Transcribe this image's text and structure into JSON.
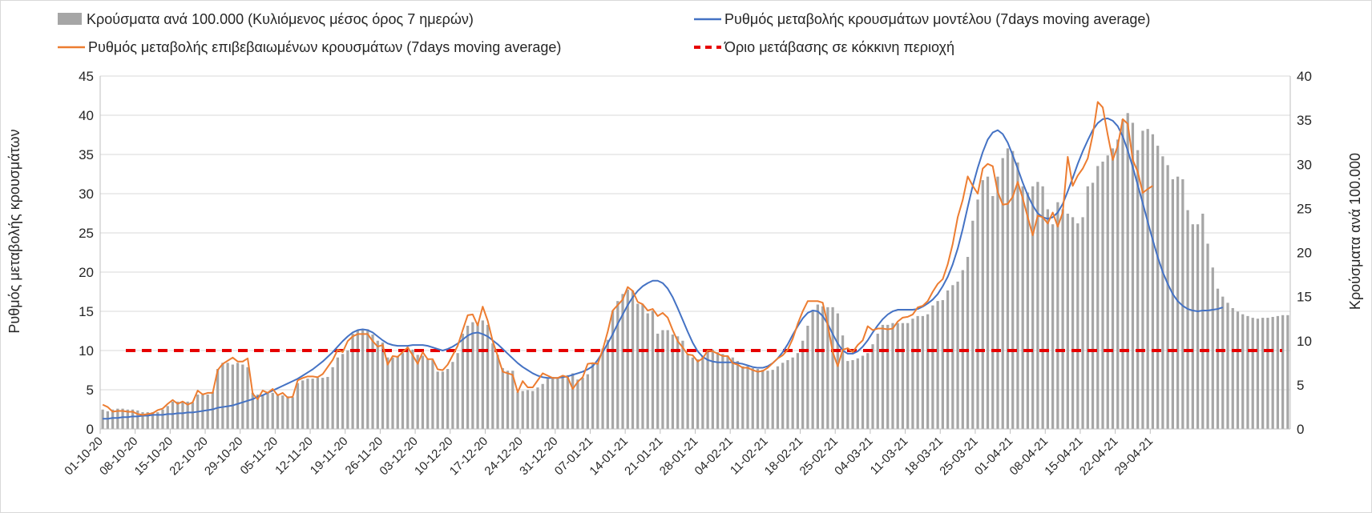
{
  "chart_data": {
    "type": "bar",
    "legend": {
      "bars": "Κρούσματα ανά 100.000 (Κυλιόμενος μέσος όρος 7 ημερών)",
      "model_rate": "Ρυθμός μεταβολής κρουσμάτων μοντέλου (7days moving average)",
      "confirmed_rate": "Ρυθμός μεταβολής επιβεβαιωμένων κρουσμάτων (7days moving average)",
      "threshold": "Όριο μετάβασης σε κόκκινη περιοχή"
    },
    "ylabel_left": "Ρυθμός μεταβολής κρουσμάτων",
    "ylabel_right": "Κρούσματα ανά 100.000",
    "ylim_left": [
      0,
      45
    ],
    "yticks_left": [
      0,
      5,
      10,
      15,
      20,
      25,
      30,
      35,
      40,
      45
    ],
    "ylim_right": [
      0,
      40
    ],
    "yticks_right": [
      0,
      5,
      10,
      15,
      20,
      25,
      30,
      35,
      40
    ],
    "x_start": "01-10-20",
    "x_tick_labels": [
      "01-10-20",
      "08-10-20",
      "15-10-20",
      "22-10-20",
      "29-10-20",
      "05-11-20",
      "12-11-20",
      "19-11-20",
      "26-11-20",
      "03-12-20",
      "10-12-20",
      "17-12-20",
      "24-12-20",
      "31-12-20",
      "07-01-21",
      "14-01-21",
      "21-01-21",
      "28-01-21",
      "04-02-21",
      "11-02-21",
      "18-02-21",
      "25-02-21",
      "04-03-21",
      "11-03-21",
      "18-03-21",
      "25-03-21",
      "01-04-21",
      "08-04-21",
      "15-04-21",
      "22-04-21",
      "29-04-21"
    ],
    "grid": "horizontal",
    "legend_position": "top",
    "colors": {
      "bars": "#a6a6a6",
      "model_rate": "#4472c4",
      "confirmed_rate": "#ed7d31",
      "threshold": "#e60000",
      "grid": "#d9d9d9"
    },
    "bars_per_100k": [
      2.2,
      2.0,
      2.2,
      2.3,
      2.3,
      2.2,
      2.2,
      2.1,
      1.9,
      1.9,
      1.9,
      1.9,
      2.2,
      2.6,
      3.1,
      3.1,
      3.1,
      3.1,
      3.0,
      3.9,
      3.9,
      3.9,
      4.2,
      6.8,
      7.5,
      7.5,
      7.3,
      7.5,
      7.3,
      7.0,
      4.1,
      3.9,
      3.8,
      4.1,
      4.1,
      3.9,
      3.8,
      3.7,
      3.6,
      5.2,
      5.5,
      5.7,
      5.7,
      5.8,
      5.8,
      5.9,
      7.0,
      8.1,
      8.5,
      8.9,
      10.8,
      11.2,
      11.2,
      11.3,
      10.7,
      10.0,
      9.8,
      8.1,
      8.1,
      8.2,
      8.6,
      9.3,
      9.0,
      8.4,
      8.3,
      8.0,
      7.8,
      6.5,
      6.5,
      6.8,
      7.6,
      8.6,
      10.8,
      11.7,
      12.1,
      12.0,
      12.3,
      11.8,
      9.7,
      8.4,
      6.9,
      6.6,
      6.6,
      4.2,
      4.3,
      4.4,
      4.3,
      4.7,
      5.1,
      5.7,
      5.9,
      5.8,
      5.8,
      6.1,
      6.3,
      5.6,
      5.8,
      6.2,
      7.5,
      7.5,
      9.1,
      10.1,
      13.4,
      14.5,
      15.3,
      15.8,
      15.7,
      14.2,
      14.1,
      13.1,
      13.4,
      10.8,
      11.2,
      11.2,
      10.7,
      10.5,
      10.0,
      8.5,
      8.1,
      7.9,
      8.3,
      9.0,
      9.0,
      8.7,
      8.5,
      8.3,
      8.1,
      7.7,
      7.1,
      7.1,
      6.9,
      6.8,
      6.7,
      6.6,
      6.7,
      7.1,
      7.5,
      7.8,
      8.1,
      8.6,
      10.0,
      11.7,
      13.5,
      14.1,
      13.9,
      13.8,
      13.8,
      13.1,
      10.6,
      7.7,
      7.8,
      8.0,
      8.3,
      8.6,
      9.6,
      10.8,
      11.8,
      11.8,
      12.0,
      12.0,
      12.0,
      12.0,
      12.5,
      12.8,
      12.8,
      13.0,
      14.0,
      14.5,
      14.6,
      15.7,
      16.3,
      16.7,
      18.0,
      19.5,
      23.6,
      26.0,
      28.2,
      28.6,
      26.4,
      28.6,
      30.7,
      31.8,
      31.5,
      30.2,
      27.5,
      26.8,
      27.5,
      28.0,
      27.5,
      24.9,
      23.2,
      25.7,
      24.9,
      24.4,
      24.0,
      23.3,
      24.0,
      27.5,
      27.9,
      29.8,
      30.3,
      31.0,
      31.8,
      32.8,
      35.1,
      35.8,
      34.7,
      31.6,
      33.8,
      34.0,
      33.4,
      32.1,
      30.9,
      29.9,
      28.3,
      28.6,
      28.3,
      24.8,
      23.2,
      23.2,
      24.4,
      21.0,
      18.3,
      15.9,
      15.0,
      14.3,
      13.7,
      13.3,
      13.0,
      12.8,
      12.6,
      12.5,
      12.6,
      12.6,
      12.7,
      12.8,
      12.9,
      12.9
    ],
    "model_rate": [
      1.3,
      1.3,
      1.4,
      1.4,
      1.5,
      1.5,
      1.6,
      1.6,
      1.7,
      1.7,
      1.8,
      1.8,
      1.8,
      1.9,
      1.9,
      2.0,
      2.0,
      2.1,
      2.1,
      2.2,
      2.3,
      2.4,
      2.5,
      2.7,
      2.8,
      2.9,
      3.0,
      3.2,
      3.4,
      3.6,
      3.8,
      4.1,
      4.3,
      4.6,
      4.9,
      5.2,
      5.5,
      5.8,
      6.1,
      6.4,
      6.8,
      7.2,
      7.6,
      8.1,
      8.6,
      9.2,
      9.8,
      10.5,
      11.2,
      11.8,
      12.3,
      12.6,
      12.7,
      12.6,
      12.3,
      11.8,
      11.3,
      10.9,
      10.7,
      10.6,
      10.6,
      10.6,
      10.7,
      10.7,
      10.7,
      10.6,
      10.4,
      10.2,
      10.0,
      10.2,
      10.5,
      10.9,
      11.4,
      11.9,
      12.2,
      12.3,
      12.1,
      11.8,
      11.3,
      10.8,
      10.2,
      9.6,
      9.0,
      8.4,
      7.9,
      7.5,
      7.1,
      6.8,
      6.6,
      6.5,
      6.5,
      6.5,
      6.6,
      6.7,
      6.9,
      7.1,
      7.3,
      7.6,
      8.0,
      8.8,
      9.8,
      10.9,
      12.1,
      13.4,
      14.6,
      15.8,
      16.8,
      17.6,
      18.2,
      18.6,
      18.9,
      18.9,
      18.6,
      17.9,
      16.8,
      15.4,
      13.9,
      12.4,
      11.0,
      9.9,
      9.2,
      8.8,
      8.6,
      8.5,
      8.5,
      8.5,
      8.5,
      8.4,
      8.3,
      8.1,
      7.9,
      7.8,
      7.8,
      8.0,
      8.4,
      9.0,
      9.8,
      10.8,
      12.0,
      13.1,
      14.1,
      14.8,
      15.1,
      15.0,
      14.4,
      13.4,
      12.1,
      10.9,
      10.0,
      9.6,
      9.6,
      9.9,
      10.5,
      11.3,
      12.3,
      13.2,
      14.0,
      14.6,
      15.0,
      15.2,
      15.2,
      15.2,
      15.2,
      15.3,
      15.6,
      16.0,
      16.5,
      17.2,
      18.2,
      19.4,
      21.0,
      23.0,
      25.5,
      28.3,
      31.0,
      33.3,
      35.3,
      36.9,
      37.8,
      38.1,
      37.6,
      36.5,
      34.9,
      33.2,
      31.4,
      29.8,
      28.5,
      27.5,
      27.0,
      26.8,
      27.0,
      27.6,
      28.7,
      30.3,
      32.0,
      33.8,
      35.4,
      36.8,
      38.1,
      39.0,
      39.5,
      39.6,
      39.3,
      38.6,
      37.3,
      35.5,
      33.4,
      31.1,
      28.8,
      26.4,
      24.1,
      21.9,
      20.0,
      18.5,
      17.2,
      16.3,
      15.7,
      15.3,
      15.1,
      15.0,
      15.1,
      15.1,
      15.2,
      15.3,
      15.5
    ],
    "confirmed_rate": [
      3.1,
      2.8,
      2.2,
      2.3,
      2.3,
      2.2,
      2.2,
      1.9,
      1.8,
      1.9,
      2.0,
      2.4,
      2.6,
      3.2,
      3.7,
      3.2,
      3.5,
      3.1,
      3.4,
      4.9,
      4.4,
      4.6,
      4.6,
      7.5,
      8.3,
      8.7,
      9.1,
      8.6,
      8.6,
      9.0,
      4.5,
      3.8,
      4.9,
      4.6,
      5.1,
      4.3,
      4.6,
      4.0,
      4.1,
      6.2,
      6.5,
      6.7,
      6.7,
      6.6,
      7.0,
      7.9,
      8.8,
      10.1,
      9.8,
      11.2,
      11.8,
      12.1,
      12.1,
      12.1,
      11.2,
      10.5,
      10.7,
      8.2,
      9.3,
      9.2,
      9.8,
      10.4,
      9.4,
      8.3,
      9.8,
      8.9,
      8.9,
      7.6,
      7.5,
      8.2,
      9.4,
      10.6,
      12.6,
      14.5,
      14.6,
      13.2,
      15.6,
      13.8,
      11.2,
      9.3,
      7.3,
      7.1,
      6.9,
      4.7,
      6.1,
      5.3,
      5.3,
      6.2,
      7.1,
      6.8,
      6.5,
      6.5,
      6.8,
      6.6,
      5.1,
      6.0,
      6.6,
      8.3,
      8.4,
      8.3,
      10.1,
      12.4,
      15.1,
      15.8,
      16.5,
      18.1,
      17.6,
      16.2,
      15.9,
      15.1,
      15.3,
      14.4,
      14.8,
      14.2,
      12.6,
      11.2,
      10.4,
      9.5,
      9.4,
      8.6,
      9.0,
      10.0,
      9.9,
      9.6,
      9.3,
      9.3,
      8.4,
      8.2,
      7.8,
      7.8,
      7.5,
      7.3,
      7.4,
      7.8,
      8.4,
      9.0,
      9.4,
      10.1,
      11.5,
      13.4,
      15.0,
      16.3,
      16.3,
      16.3,
      16.1,
      13.3,
      9.8,
      8.0,
      10.1,
      10.3,
      9.8,
      10.7,
      11.3,
      13.1,
      12.6,
      12.8,
      12.8,
      12.7,
      12.8,
      13.7,
      14.2,
      14.3,
      14.6,
      15.5,
      15.7,
      16.3,
      17.5,
      18.5,
      19.1,
      21.0,
      23.6,
      27.0,
      29.2,
      32.2,
      31.0,
      30.0,
      33.2,
      33.8,
      33.5,
      30.2,
      28.6,
      28.7,
      29.6,
      31.5,
      29.4,
      27.0,
      24.7,
      27.2,
      27.0,
      26.2,
      27.6,
      25.8,
      27.6,
      34.7,
      31.0,
      32.3,
      33.2,
      34.5,
      37.5,
      41.7,
      41.0,
      37.5,
      34.3,
      36.1,
      39.5,
      38.9,
      34.3,
      32.8,
      30.1,
      30.6,
      31.0
    ]
  }
}
